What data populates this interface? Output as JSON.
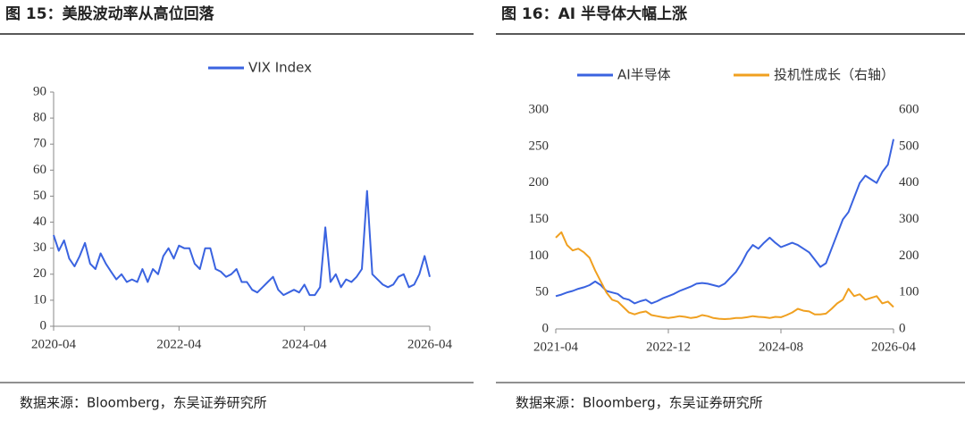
{
  "chart_data": [
    {
      "type": "line",
      "title": "图 15：美股波动率从高位回落",
      "source": "数据来源：Bloomberg，东吴证券研究所",
      "x": [
        "2020-04",
        "2020-05",
        "2020-06",
        "2020-07",
        "2020-08",
        "2020-09",
        "2020-10",
        "2020-11",
        "2020-12",
        "2021-01",
        "2021-02",
        "2021-03",
        "2021-04",
        "2021-05",
        "2021-06",
        "2021-07",
        "2021-08",
        "2021-09",
        "2021-10",
        "2021-11",
        "2021-12",
        "2022-01",
        "2022-02",
        "2022-03",
        "2022-04",
        "2022-05",
        "2022-06",
        "2022-07",
        "2022-08",
        "2022-09",
        "2022-10",
        "2022-11",
        "2022-12",
        "2023-01",
        "2023-02",
        "2023-03",
        "2023-04",
        "2023-05",
        "2023-06",
        "2023-07",
        "2023-08",
        "2023-09",
        "2023-10",
        "2023-11",
        "2023-12",
        "2024-01",
        "2024-02",
        "2024-03",
        "2024-04",
        "2024-05",
        "2024-06",
        "2024-07",
        "2024-08",
        "2024-09",
        "2024-10",
        "2024-11",
        "2024-12",
        "2025-01",
        "2025-02",
        "2025-03",
        "2025-04",
        "2025-05",
        "2025-06",
        "2025-07",
        "2025-08",
        "2025-09",
        "2025-10",
        "2025-11",
        "2025-12",
        "2026-01",
        "2026-02",
        "2026-03",
        "2026-04"
      ],
      "xticks": [
        "2020-04",
        "2022-04",
        "2024-04",
        "2026-04"
      ],
      "series": [
        {
          "name": "VIX Index",
          "color": "#3a63e0",
          "values": [
            35,
            29,
            33,
            26,
            23,
            27,
            32,
            24,
            22,
            28,
            24,
            21,
            18,
            20,
            17,
            18,
            17,
            22,
            17,
            22,
            20,
            27,
            30,
            26,
            31,
            30,
            30,
            24,
            22,
            30,
            30,
            22,
            21,
            19,
            20,
            22,
            17,
            17,
            14,
            13,
            15,
            17,
            19,
            14,
            12,
            13,
            14,
            13,
            16,
            12,
            12,
            15,
            38,
            17,
            20,
            15,
            18,
            17,
            19,
            22,
            52,
            20,
            18,
            16,
            15,
            16,
            19,
            20,
            15,
            16,
            20,
            27,
            19
          ]
        }
      ],
      "ylim": [
        0,
        90
      ],
      "yticks": [
        0,
        10,
        20,
        30,
        40,
        50,
        60,
        70,
        80,
        90
      ]
    },
    {
      "type": "line",
      "title": "图 16：AI 半导体大幅上涨",
      "source": "数据来源：Bloomberg，东吴证券研究所",
      "x": [
        "2021-04",
        "2021-05",
        "2021-06",
        "2021-07",
        "2021-08",
        "2021-09",
        "2021-10",
        "2021-11",
        "2021-12",
        "2022-01",
        "2022-02",
        "2022-03",
        "2022-04",
        "2022-05",
        "2022-06",
        "2022-07",
        "2022-08",
        "2022-09",
        "2022-10",
        "2022-11",
        "2022-12",
        "2023-01",
        "2023-02",
        "2023-03",
        "2023-04",
        "2023-05",
        "2023-06",
        "2023-07",
        "2023-08",
        "2023-09",
        "2023-10",
        "2023-11",
        "2023-12",
        "2024-01",
        "2024-02",
        "2024-03",
        "2024-04",
        "2024-05",
        "2024-06",
        "2024-07",
        "2024-08",
        "2024-09",
        "2024-10",
        "2024-11",
        "2024-12",
        "2025-01",
        "2025-02",
        "2025-03",
        "2025-04",
        "2025-05",
        "2025-06",
        "2025-07",
        "2025-08",
        "2025-09",
        "2025-10",
        "2025-11",
        "2025-12",
        "2026-01",
        "2026-02",
        "2026-03",
        "2026-04"
      ],
      "xticks": [
        "2021-04",
        "2022-12",
        "2024-08",
        "2026-04"
      ],
      "series": [
        {
          "name": "AI半导体",
          "color": "#3a63e0",
          "values": [
            45,
            47,
            50,
            52,
            55,
            57,
            60,
            65,
            60,
            52,
            50,
            48,
            42,
            40,
            35,
            38,
            40,
            35,
            38,
            42,
            45,
            48,
            52,
            55,
            58,
            62,
            63,
            62,
            60,
            58,
            62,
            70,
            78,
            90,
            105,
            115,
            110,
            118,
            125,
            118,
            112,
            115,
            118,
            115,
            110,
            105,
            95,
            85,
            90,
            110,
            130,
            150,
            160,
            180,
            200,
            210,
            205,
            200,
            215,
            225,
            260
          ]
        },
        {
          "name": "投机性成长（右轴）",
          "color": "#f0a020",
          "axis": "y2",
          "values": [
            250,
            265,
            230,
            215,
            220,
            210,
            195,
            160,
            130,
            100,
            80,
            75,
            60,
            45,
            40,
            45,
            48,
            38,
            35,
            32,
            30,
            32,
            35,
            33,
            30,
            32,
            38,
            35,
            30,
            28,
            27,
            28,
            30,
            30,
            32,
            35,
            33,
            32,
            30,
            33,
            32,
            38,
            45,
            55,
            50,
            48,
            40,
            40,
            42,
            55,
            70,
            80,
            110,
            90,
            95,
            80,
            85,
            90,
            70,
            75,
            60
          ]
        }
      ],
      "ylim": [
        0,
        300
      ],
      "yticks": [
        0,
        50,
        100,
        150,
        200,
        250,
        300
      ],
      "y2lim": [
        0,
        600
      ],
      "y2ticks": [
        0,
        100,
        200,
        300,
        400,
        500,
        600
      ]
    }
  ]
}
